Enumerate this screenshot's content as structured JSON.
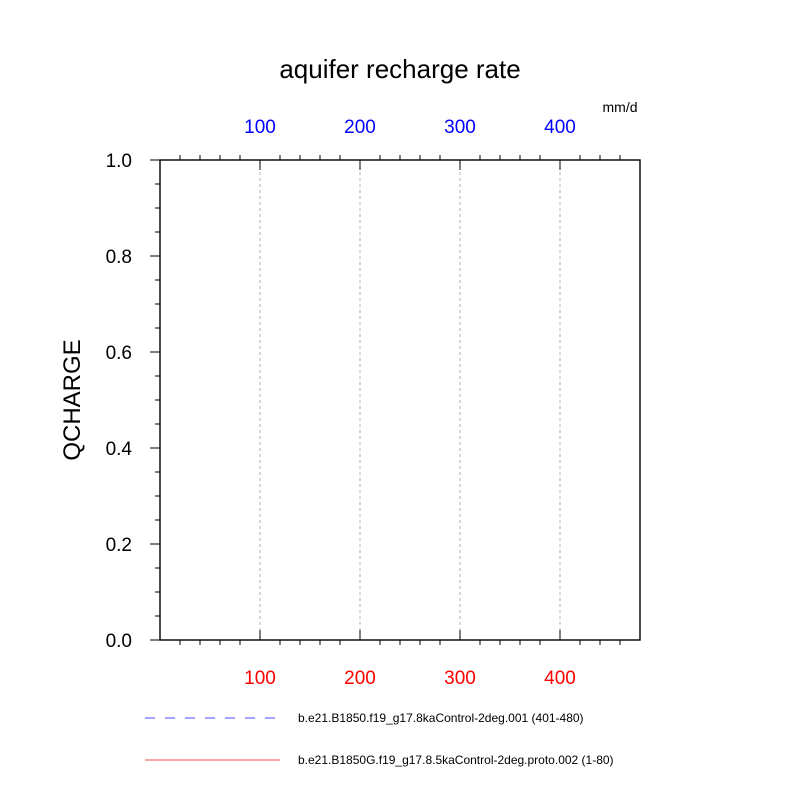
{
  "chart_data": {
    "type": "line",
    "title": "aquifer recharge rate",
    "ylabel": "QCHARGE",
    "top_axis_unit": "mm/d",
    "ylim": [
      0,
      1
    ],
    "yticks": [
      "0.0",
      "0.2",
      "0.4",
      "0.6",
      "0.8",
      "1.0"
    ],
    "xlim": [
      0,
      480
    ],
    "xticks": [
      100,
      200,
      300,
      400
    ],
    "xtick_labels": [
      "100",
      "200",
      "300",
      "400"
    ],
    "grid": "vertical dashed at x ticks",
    "colors": {
      "top_axis": "#0000ff",
      "bottom_axis": "#ff0000"
    },
    "series": [
      {
        "name": "b.e21.B1850.f19_g17.8kaControl-2deg.001 (401-480)",
        "color": "#0000ff",
        "style": "dashed",
        "x": [],
        "values": []
      },
      {
        "name": "b.e21.B1850G.f19_g17.8.5kaControl-2deg.proto.002 (1-80)",
        "color": "#ff0000",
        "style": "solid",
        "x": [],
        "values": []
      }
    ]
  }
}
